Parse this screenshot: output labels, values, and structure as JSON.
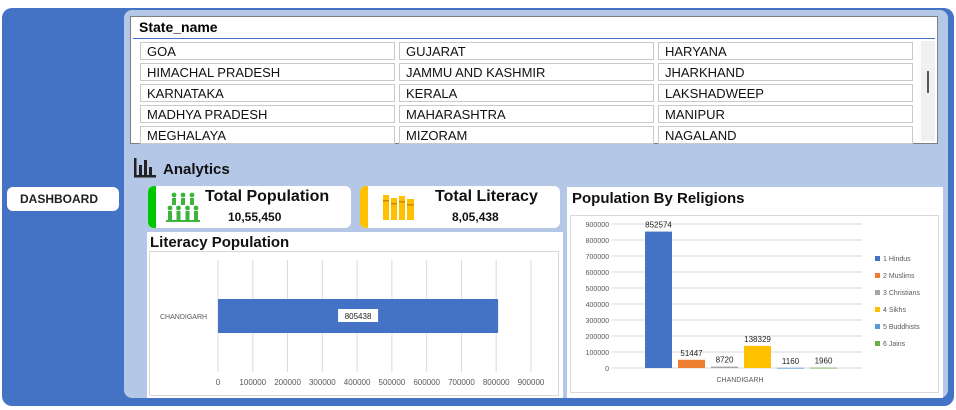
{
  "sidebar": {
    "dashboard_label": "DASHBOARD"
  },
  "slicer": {
    "title": "State_name",
    "items": [
      "GOA",
      "GUJARAT",
      "HARYANA",
      "HIMACHAL PRADESH",
      "JAMMU AND KASHMIR",
      "JHARKHAND",
      "KARNATAKA",
      "KERALA",
      "LAKSHADWEEP",
      "MADHYA PRADESH",
      "MAHARASHTRA",
      "MANIPUR",
      "MEGHALAYA",
      "MIZORAM",
      "NAGALAND"
    ]
  },
  "analytics": {
    "label": "Analytics",
    "icon": "bar-chart-icon"
  },
  "kpis": {
    "population": {
      "title": "Total Population",
      "value": "10,55,450",
      "icon": "people-icon",
      "accent": "#00C800"
    },
    "literacy": {
      "title": "Total Literacy",
      "value": "8,05,438",
      "icon": "books-icon",
      "accent": "#FFC000"
    }
  },
  "chart_data": [
    {
      "type": "bar",
      "orientation": "horizontal",
      "title": "Literacy Population",
      "categories": [
        "CHANDIGARH"
      ],
      "values": [
        805438
      ],
      "data_labels": [
        "805438"
      ],
      "xlim": [
        0,
        900000
      ],
      "ticks": [
        "0",
        "100000",
        "200000",
        "300000",
        "400000",
        "500000",
        "600000",
        "700000",
        "800000",
        "900000"
      ],
      "grid": true,
      "color": "#4472C4"
    },
    {
      "type": "bar",
      "title": "Population By Religions",
      "categories": [
        "CHANDIGARH"
      ],
      "series": [
        {
          "name": "1 Hindus",
          "values": [
            852574
          ],
          "color": "#4472C4"
        },
        {
          "name": "2 Muslims",
          "values": [
            51447
          ],
          "color": "#ED7D31"
        },
        {
          "name": "3 Christians",
          "values": [
            8720
          ],
          "color": "#A5A5A5"
        },
        {
          "name": "4 Sikhs",
          "values": [
            138329
          ],
          "color": "#FFC000"
        },
        {
          "name": "5 Buddhists",
          "values": [
            1160
          ],
          "color": "#5B9BD5"
        },
        {
          "name": "6 Jains",
          "values": [
            1960
          ],
          "color": "#70AD47"
        }
      ],
      "ylim": [
        0,
        900000
      ],
      "ticks": [
        "0",
        "100000",
        "200000",
        "300000",
        "400000",
        "500000",
        "600000",
        "700000",
        "800000",
        "900000"
      ],
      "grid": true,
      "legend": "right"
    }
  ]
}
